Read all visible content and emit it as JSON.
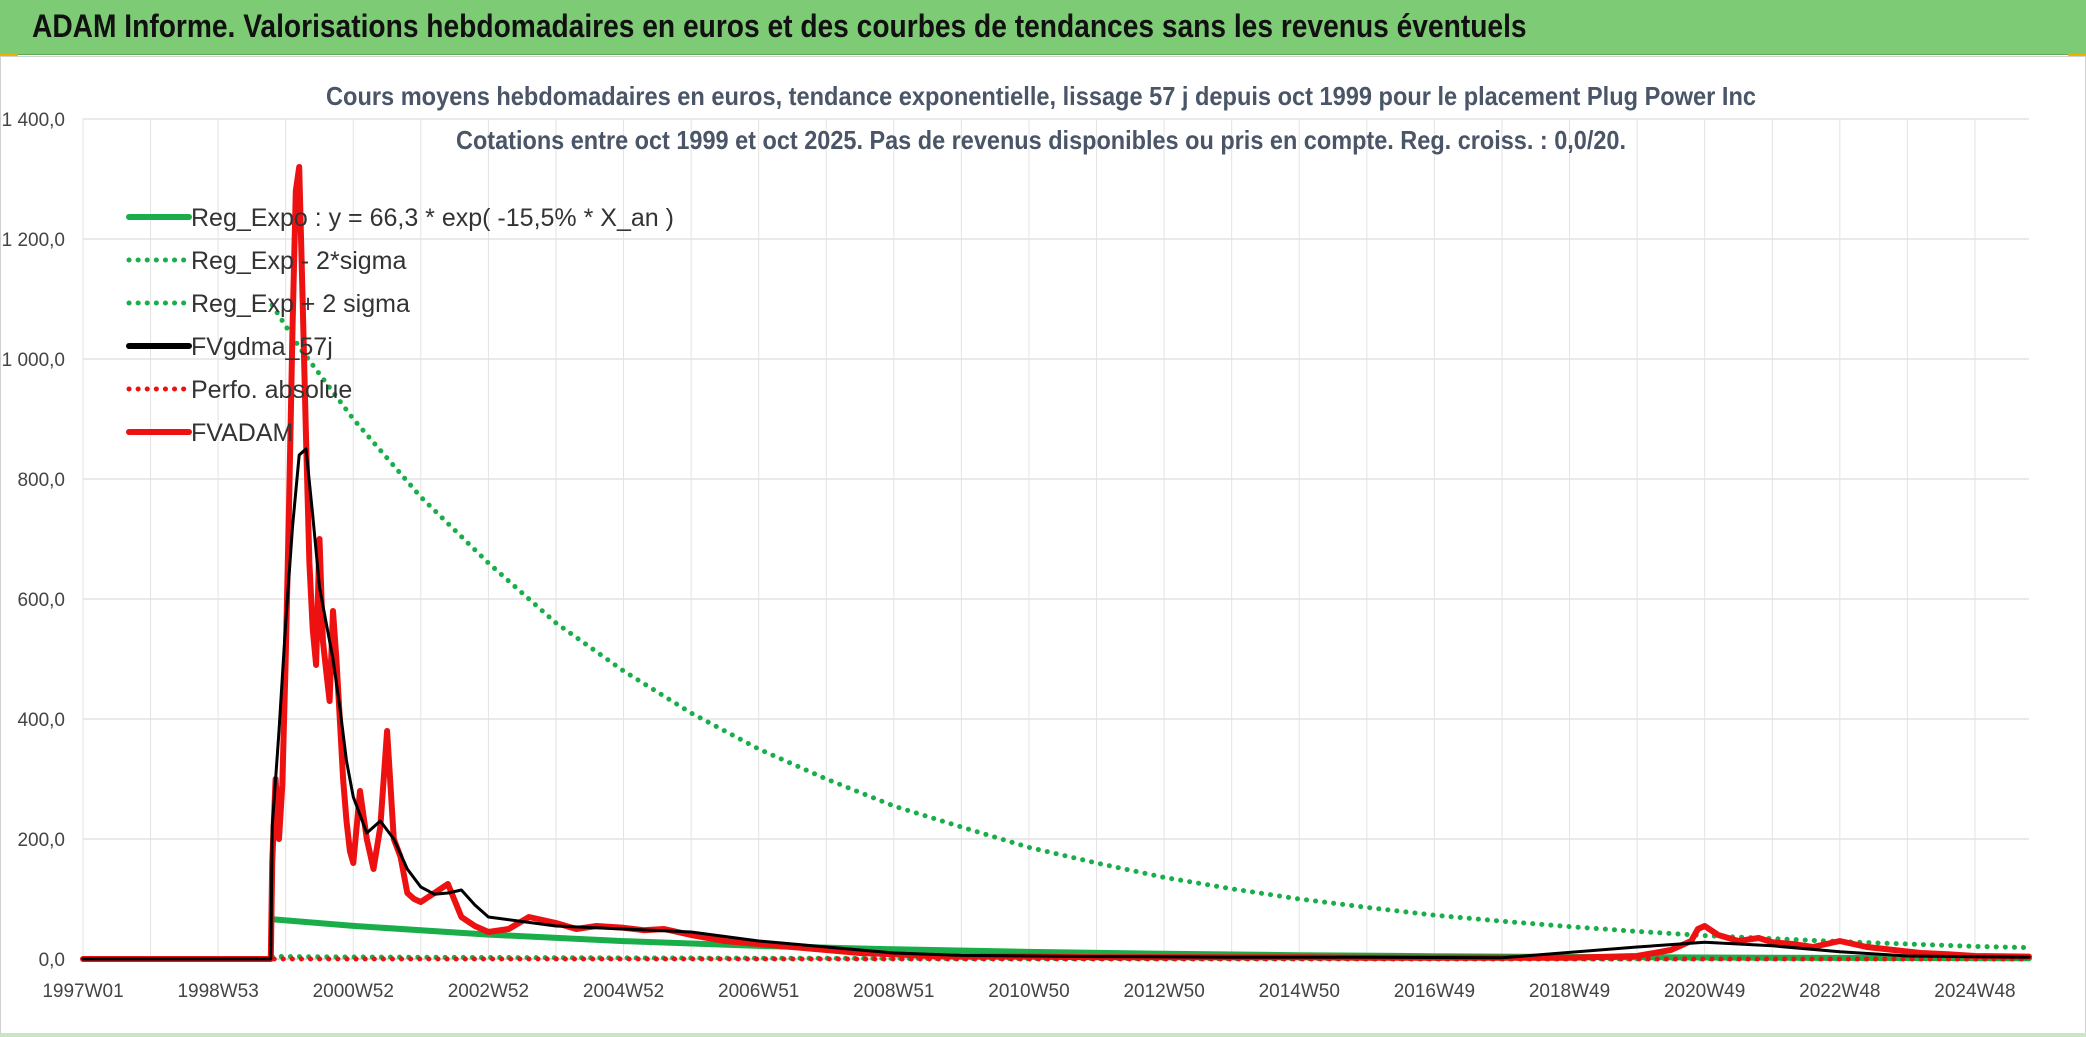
{
  "banner": {
    "title": "ADAM Informe. Valorisations hebdomadaires en euros et des courbes de tendances sans les revenus éventuels"
  },
  "colors": {
    "banner": "#7dcb74",
    "green": "#1aae4a",
    "red": "#ee1111",
    "black": "#000000",
    "grid": "#e3e3e3"
  },
  "chart_data": {
    "type": "line",
    "title": "Cours moyens hebdomadaires en euros, tendance exponentielle, lissage 57 j depuis oct 1999 pour le placement Plug Power Inc",
    "subtitle": "Cotations entre oct 1999 et oct 2025. Pas de revenus disponibles ou pris en compte. Reg. croiss. : 0,0/20.",
    "xlabel": "",
    "ylabel": "",
    "ylim": [
      0,
      1400
    ],
    "yticks": [
      "0,0",
      "200,0",
      "400,0",
      "600,0",
      "800,0",
      "1 000,0",
      "1 200,0",
      "1 400,0"
    ],
    "yvalues": [
      0,
      200,
      400,
      600,
      800,
      1000,
      1200,
      1400
    ],
    "xlim": [
      1997.0,
      2025.8
    ],
    "xticks": [
      {
        "label": "1997W01",
        "x": 1997.0
      },
      {
        "label": "1998W53",
        "x": 1999.0
      },
      {
        "label": "2000W52",
        "x": 2001.0
      },
      {
        "label": "2002W52",
        "x": 2003.0
      },
      {
        "label": "2004W52",
        "x": 2005.0
      },
      {
        "label": "2006W51",
        "x": 2007.0
      },
      {
        "label": "2008W51",
        "x": 2009.0
      },
      {
        "label": "2010W50",
        "x": 2011.0
      },
      {
        "label": "2012W50",
        "x": 2013.0
      },
      {
        "label": "2014W50",
        "x": 2015.0
      },
      {
        "label": "2016W49",
        "x": 2017.0
      },
      {
        "label": "2018W49",
        "x": 2019.0
      },
      {
        "label": "2020W49",
        "x": 2021.0
      },
      {
        "label": "2022W48",
        "x": 2023.0
      },
      {
        "label": "2024W48",
        "x": 2025.0
      }
    ],
    "grid": true,
    "legend_position": "top-left",
    "series": [
      {
        "name": "Reg_Expo : y = 66,3 * exp( -15,5% *  X_an )",
        "color": "#1aae4a",
        "style": "solid",
        "x": [
          1999.8,
          2001,
          2003,
          2005,
          2007,
          2009,
          2011,
          2013,
          2015,
          2017,
          2019,
          2021,
          2023,
          2025.8
        ],
        "y": [
          66.3,
          55.2,
          40.6,
          29.8,
          21.9,
          16.1,
          11.8,
          8.7,
          6.4,
          4.7,
          3.4,
          2.5,
          1.9,
          1.3
        ]
      },
      {
        "name": "Reg_Exp - 2*sigma",
        "color": "#1aae4a",
        "style": "dotted",
        "x": [
          1999.8,
          2001,
          2003,
          2005,
          2007,
          2009,
          2011,
          2013,
          2015,
          2017,
          2019,
          2021,
          2023,
          2025.8
        ],
        "y": [
          4.1,
          3.4,
          2.5,
          1.8,
          1.4,
          1.0,
          0.7,
          0.5,
          0.4,
          0.3,
          0.2,
          0.2,
          0.1,
          0.1
        ]
      },
      {
        "name": "Reg_Exp + 2 sigma",
        "color": "#1aae4a",
        "style": "dotted",
        "x": [
          1999.8,
          2000.2,
          2001,
          2002,
          2003,
          2004,
          2005,
          2006,
          2007,
          2008,
          2009,
          2010,
          2011,
          2012,
          2013,
          2014,
          2015,
          2016,
          2017,
          2018,
          2019,
          2020,
          2021,
          2022,
          2023,
          2024,
          2025,
          2025.8
        ],
        "y": [
          1090,
          1020,
          900,
          770,
          660,
          560,
          480,
          410,
          350,
          300,
          255,
          220,
          186,
          160,
          136,
          117,
          100,
          86,
          73,
          63,
          54,
          46,
          39,
          34,
          29,
          25,
          21,
          19
        ]
      },
      {
        "name": "FVgdma_57j",
        "color": "#000000",
        "style": "solid",
        "x": [
          1997.0,
          1999.78,
          1999.8,
          1999.9,
          2000.0,
          2000.1,
          2000.2,
          2000.3,
          2000.4,
          2000.5,
          2000.6,
          2000.7,
          2000.8,
          2000.9,
          2001.0,
          2001.2,
          2001.4,
          2001.6,
          2001.8,
          2002.0,
          2002.2,
          2002.4,
          2002.6,
          2002.8,
          2003.0,
          2004.0,
          2005.0,
          2006.0,
          2007.0,
          2008.0,
          2009.0,
          2010.0,
          2012.0,
          2014.0,
          2016.0,
          2018.0,
          2020.0,
          2021.0,
          2022.0,
          2023.0,
          2024.0,
          2025.8
        ],
        "y": [
          0,
          0,
          220,
          380,
          560,
          720,
          840,
          850,
          740,
          620,
          560,
          500,
          420,
          330,
          270,
          210,
          230,
          200,
          150,
          120,
          108,
          110,
          115,
          90,
          70,
          55,
          50,
          45,
          30,
          20,
          10,
          6,
          4,
          3,
          3,
          2,
          20,
          28,
          22,
          12,
          5,
          3
        ]
      },
      {
        "name": "Perfo. absolue",
        "color": "#ee1111",
        "style": "dotted",
        "x": [
          1997.0,
          2025.8
        ],
        "y": [
          0,
          0
        ]
      },
      {
        "name": "FVADAM",
        "color": "#ee1111",
        "style": "solid",
        "x": [
          1997.0,
          1999.78,
          1999.8,
          1999.85,
          1999.9,
          1999.95,
          2000.0,
          2000.05,
          2000.1,
          2000.15,
          2000.2,
          2000.25,
          2000.3,
          2000.35,
          2000.4,
          2000.45,
          2000.5,
          2000.55,
          2000.6,
          2000.65,
          2000.7,
          2000.75,
          2000.8,
          2000.85,
          2000.9,
          2000.95,
          2001.0,
          2001.1,
          2001.2,
          2001.3,
          2001.4,
          2001.5,
          2001.6,
          2001.7,
          2001.8,
          2001.9,
          2002.0,
          2002.2,
          2002.4,
          2002.6,
          2002.8,
          2003.0,
          2003.3,
          2003.6,
          2004.0,
          2004.3,
          2004.6,
          2005.0,
          2005.3,
          2005.6,
          2006.0,
          2006.5,
          2007.0,
          2007.5,
          2008.0,
          2008.5,
          2009.0,
          2009.5,
          2010.0,
          2011.0,
          2012.0,
          2013.0,
          2014.0,
          2015.0,
          2016.0,
          2017.0,
          2018.0,
          2019.0,
          2020.0,
          2020.5,
          2020.8,
          2020.9,
          2021.0,
          2021.2,
          2021.5,
          2021.8,
          2022.0,
          2022.3,
          2022.6,
          2023.0,
          2023.4,
          2023.8,
          2024.2,
          2024.6,
          2025.0,
          2025.8
        ],
        "y": [
          0,
          0,
          160,
          300,
          200,
          290,
          500,
          760,
          1050,
          1280,
          1320,
          1100,
          870,
          660,
          550,
          490,
          700,
          530,
          480,
          430,
          580,
          500,
          400,
          300,
          230,
          180,
          160,
          280,
          200,
          150,
          220,
          380,
          200,
          170,
          110,
          100,
          95,
          110,
          125,
          70,
          55,
          45,
          50,
          70,
          60,
          50,
          55,
          52,
          48,
          50,
          40,
          30,
          25,
          20,
          15,
          10,
          8,
          5,
          4,
          4,
          3,
          3,
          3,
          3,
          2,
          2,
          2,
          2,
          5,
          15,
          30,
          50,
          55,
          40,
          30,
          35,
          28,
          25,
          20,
          30,
          20,
          15,
          10,
          8,
          5,
          4
        ]
      }
    ]
  }
}
